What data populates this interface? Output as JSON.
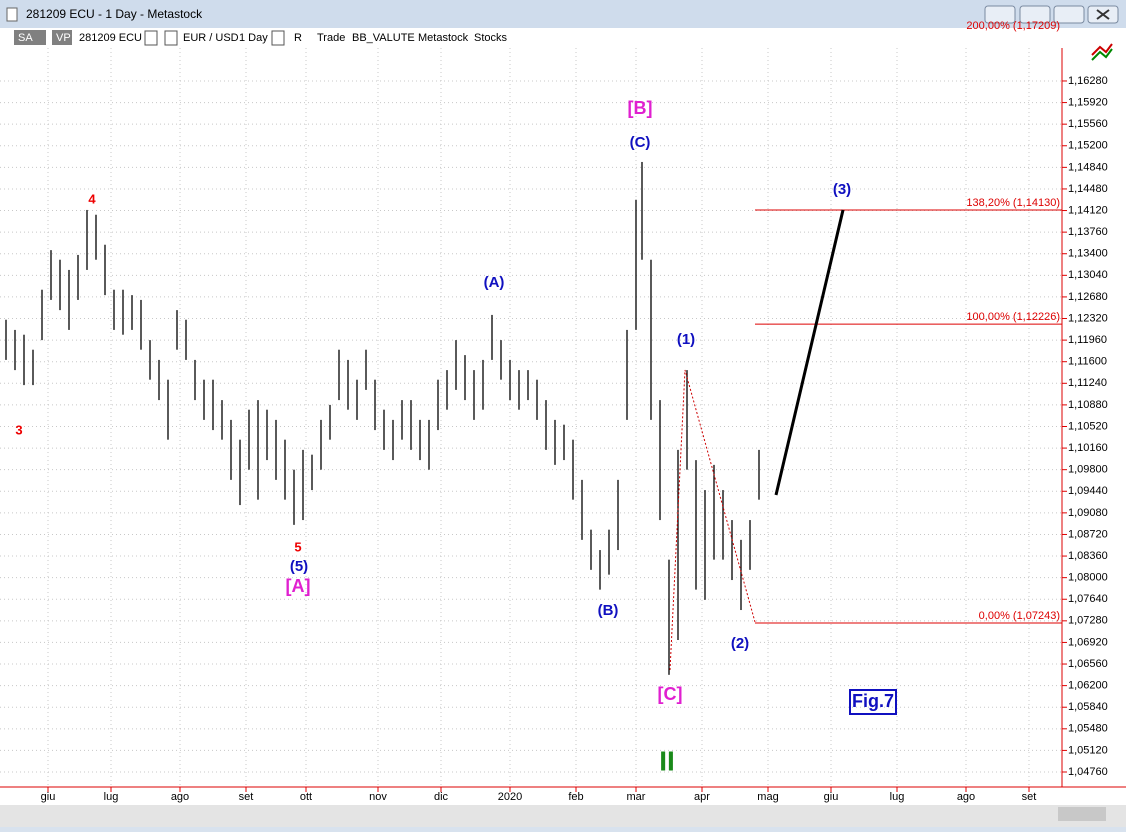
{
  "window": {
    "title": "281209 ECU - 1 Day - Metastock"
  },
  "toolbar": {
    "items": [
      "SA",
      "VP",
      "281209 ECU",
      "EUR / USD",
      "1 Day",
      "R",
      "Trade",
      "BB_VALUTE",
      "Metastock",
      "Stocks"
    ]
  },
  "chart_data": {
    "type": "range",
    "color": "#000000",
    "grid": true,
    "x": [
      2,
      5,
      8,
      11,
      14,
      17,
      20,
      23,
      26,
      29,
      32,
      35,
      38,
      41,
      44,
      47,
      50,
      53,
      56,
      59,
      62,
      65,
      68,
      71,
      74,
      77,
      80,
      83,
      86,
      89,
      92,
      95,
      98,
      101,
      104,
      107,
      110,
      113,
      116,
      119,
      122,
      125,
      128,
      131,
      134,
      137,
      140,
      143,
      146,
      149,
      152,
      155,
      158,
      161,
      164,
      167,
      170,
      173,
      176,
      179,
      182,
      185,
      188,
      191,
      194,
      197,
      200,
      203,
      206,
      209,
      212,
      214,
      217,
      220,
      223,
      226,
      229,
      232,
      235,
      238,
      241,
      244,
      247,
      250,
      253
    ],
    "high": [
      1.123,
      1.1213,
      1.1205,
      1.118,
      1.128,
      1.1346,
      1.133,
      1.1313,
      1.1338,
      1.1413,
      1.1405,
      1.1355,
      1.128,
      1.128,
      1.1271,
      1.1263,
      1.1196,
      1.1163,
      1.113,
      1.1246,
      1.123,
      1.1163,
      1.113,
      1.113,
      1.1096,
      1.1063,
      1.103,
      1.108,
      1.1096,
      1.108,
      1.1063,
      1.103,
      1.098,
      1.1013,
      1.1005,
      1.1063,
      1.1088,
      1.118,
      1.1163,
      1.113,
      1.118,
      1.113,
      1.108,
      1.1063,
      1.1096,
      1.1096,
      1.1063,
      1.1063,
      1.113,
      1.1146,
      1.1196,
      1.1171,
      1.1146,
      1.1163,
      1.1238,
      1.1196,
      1.1163,
      1.1146,
      1.1146,
      1.113,
      1.1096,
      1.1063,
      1.1055,
      1.103,
      1.0963,
      1.088,
      1.0846,
      1.088,
      1.0963,
      1.1213,
      1.143,
      1.1493,
      1.133,
      1.1096,
      1.083,
      1.1013,
      1.1146,
      1.0996,
      1.0946,
      1.0988,
      1.0946,
      1.0896,
      1.0863,
      1.0896,
      1.1013
    ],
    "low": [
      1.1163,
      1.1146,
      1.1121,
      1.1121,
      1.1196,
      1.1263,
      1.1246,
      1.1213,
      1.1263,
      1.1313,
      1.133,
      1.1271,
      1.1213,
      1.1205,
      1.1213,
      1.118,
      1.113,
      1.1096,
      1.103,
      1.118,
      1.1163,
      1.1096,
      1.1063,
      1.1046,
      1.103,
      1.0963,
      1.0921,
      1.098,
      1.093,
      1.0996,
      1.0963,
      1.093,
      1.0888,
      1.0896,
      1.0946,
      1.098,
      1.103,
      1.1096,
      1.108,
      1.1063,
      1.1113,
      1.1046,
      1.1013,
      1.0996,
      1.103,
      1.1013,
      1.0996,
      1.098,
      1.1046,
      1.108,
      1.1113,
      1.1096,
      1.1063,
      1.108,
      1.1163,
      1.113,
      1.1096,
      1.108,
      1.1096,
      1.1063,
      1.1013,
      1.0988,
      1.0996,
      1.093,
      1.0863,
      1.0813,
      1.078,
      1.0805,
      1.0846,
      1.1063,
      1.1213,
      1.133,
      1.1063,
      1.0896,
      1.0638,
      1.0696,
      1.098,
      1.078,
      1.0763,
      1.083,
      1.083,
      1.0796,
      1.0746,
      1.0813,
      1.093
    ],
    "xlim": [
      0,
      354
    ],
    "xticks": [
      {
        "value": 16,
        "label": "giu"
      },
      {
        "value": 37,
        "label": "lug"
      },
      {
        "value": 60,
        "label": "ago"
      },
      {
        "value": 82,
        "label": "set"
      },
      {
        "value": 102,
        "label": "ott"
      },
      {
        "value": 126,
        "label": "nov"
      },
      {
        "value": 147,
        "label": "dic"
      },
      {
        "value": 170,
        "label": "2020"
      },
      {
        "value": 192,
        "label": "feb"
      },
      {
        "value": 212,
        "label": "mar"
      },
      {
        "value": 234,
        "label": "apr"
      },
      {
        "value": 256,
        "label": "mag"
      },
      {
        "value": 277,
        "label": "giu"
      },
      {
        "value": 299,
        "label": "lug"
      },
      {
        "value": 322,
        "label": "ago"
      },
      {
        "value": 343,
        "label": "set"
      }
    ],
    "ylim": [
      1.0451,
      1.16763
    ],
    "yticks": [
      {
        "value": 1.0476,
        "label": "1,04760"
      },
      {
        "value": 1.0512,
        "label": "1,05120"
      },
      {
        "value": 1.0548,
        "label": "1,05480"
      },
      {
        "value": 1.0584,
        "label": "1,05840"
      },
      {
        "value": 1.062,
        "label": "1,06200"
      },
      {
        "value": 1.0656,
        "label": "1,06560"
      },
      {
        "value": 1.0692,
        "label": "1,06920"
      },
      {
        "value": 1.0728,
        "label": "1,07280"
      },
      {
        "value": 1.0764,
        "label": "1,07640"
      },
      {
        "value": 1.08,
        "label": "1,08000"
      },
      {
        "value": 1.0836,
        "label": "1,08360"
      },
      {
        "value": 1.0872,
        "label": "1,08720"
      },
      {
        "value": 1.0908,
        "label": "1,09080"
      },
      {
        "value": 1.0944,
        "label": "1,09440"
      },
      {
        "value": 1.098,
        "label": "1,09800"
      },
      {
        "value": 1.1016,
        "label": "1,10160"
      },
      {
        "value": 1.1052,
        "label": "1,10520"
      },
      {
        "value": 1.1088,
        "label": "1,10880"
      },
      {
        "value": 1.1124,
        "label": "1,11240"
      },
      {
        "value": 1.116,
        "label": "1,11600"
      },
      {
        "value": 1.1196,
        "label": "1,11960"
      },
      {
        "value": 1.1232,
        "label": "1,12320"
      },
      {
        "value": 1.1268,
        "label": "1,12680"
      },
      {
        "value": 1.1304,
        "label": "1,13040"
      },
      {
        "value": 1.134,
        "label": "1,13400"
      },
      {
        "value": 1.1376,
        "label": "1,13760"
      },
      {
        "value": 1.1412,
        "label": "1,14120"
      },
      {
        "value": 1.1448,
        "label": "1,14480"
      },
      {
        "value": 1.1484,
        "label": "1,14840"
      },
      {
        "value": 1.152,
        "label": "1,15200"
      },
      {
        "value": 1.1556,
        "label": "1,15560"
      },
      {
        "value": 1.1592,
        "label": "1,15920"
      },
      {
        "value": 1.1628,
        "label": "1,16280"
      }
    ],
    "levels": [
      {
        "value": 1.17209,
        "label": "200,00% (1,17209)"
      },
      {
        "value": 1.1413,
        "label": "138,20% (1,14130)"
      },
      {
        "value": 1.12226,
        "label": "100,00% (1,12226)"
      },
      {
        "value": 1.07243,
        "label": "0,00% (1,07243)"
      }
    ],
    "level_color": "#dd0000",
    "annotations": [
      {
        "text": "4",
        "color": "#ee0000"
      },
      {
        "text": "3",
        "color": "#ee0000"
      },
      {
        "text": "5",
        "color": "#ee0000"
      },
      {
        "text": "(5)",
        "color": "#1010c0"
      },
      {
        "text": "[A]",
        "color": "#e020d0"
      },
      {
        "text": "(A)",
        "color": "#1010c0"
      },
      {
        "text": "[B]",
        "color": "#e020d0"
      },
      {
        "text": "(C)",
        "color": "#1010c0"
      },
      {
        "text": "(B)",
        "color": "#1010c0"
      },
      {
        "text": "[C]",
        "color": "#e020d0"
      },
      {
        "text": "(1)",
        "color": "#1010c0"
      },
      {
        "text": "(2)",
        "color": "#1010c0"
      },
      {
        "text": "(3)",
        "color": "#1010c0"
      },
      {
        "text": "II",
        "color": "#1a8a1a"
      },
      {
        "text": "Fig.7",
        "color": "#1010c0"
      }
    ]
  }
}
